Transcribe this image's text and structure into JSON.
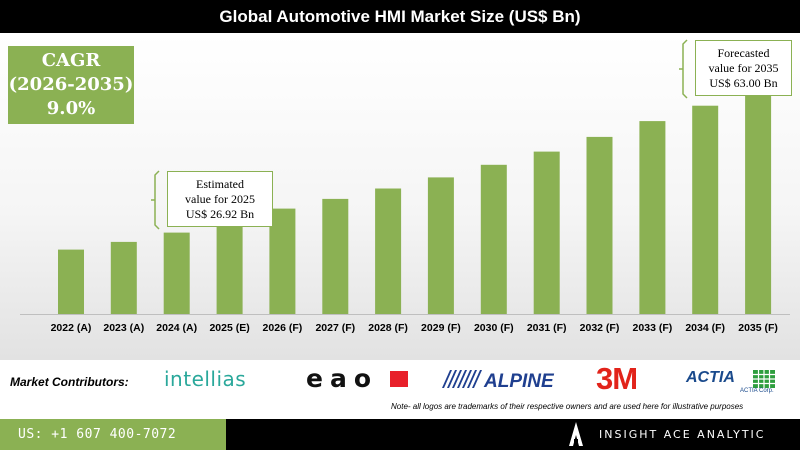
{
  "title": "Global Automotive HMI Market Size (US$ Bn)",
  "cagr": {
    "label": "CAGR",
    "period": "(2026-2035)",
    "value": "9.0%"
  },
  "callouts": {
    "estimated": {
      "line1": "Estimated",
      "line2": "value for 2025",
      "line3": "US$ 26.92 Bn"
    },
    "forecasted": {
      "line1": "Forecasted",
      "line2": "value for 2035",
      "line3": "US$ 63.00 Bn"
    }
  },
  "chart_data": {
    "type": "bar",
    "title": "Global Automotive HMI Market Size (US$ Bn)",
    "xlabel": "",
    "ylabel": "",
    "categories": [
      "2022 (A)",
      "2023 (A)",
      "2024 (A)",
      "2025 (E)",
      "2026 (F)",
      "2027 (F)",
      "2028 (F)",
      "2029 (F)",
      "2030 (F)",
      "2031 (F)",
      "2032 (F)",
      "2033 (F)",
      "2034 (F)",
      "2035 (F)"
    ],
    "values": [
      17.95,
      20.1,
      22.7,
      26.92,
      29.4,
      32.1,
      35.0,
      38.1,
      41.6,
      45.3,
      49.4,
      53.8,
      58.1,
      63.0
    ],
    "ylim": [
      0,
      70
    ],
    "grid": false,
    "legend": "none",
    "bar_color": "#8bb153"
  },
  "contributors": {
    "label": "Market Contributors:",
    "logos": {
      "intellias": "intellias",
      "eao": "eao",
      "alpine": "ALPINE",
      "threem": "3M",
      "actia": "ACTIA",
      "actia_sub": "ACTIA Corp."
    },
    "note": "Note- all logos are trademarks of their respective owners and are used here for illustrative purposes"
  },
  "footer": {
    "phone": "US: +1 607 400-7072",
    "brand": "INSIGHT ACE ANALYTIC"
  },
  "colors": {
    "accent": "#8bb153",
    "title_bg": "#000000",
    "footer_dark": "#000000"
  }
}
